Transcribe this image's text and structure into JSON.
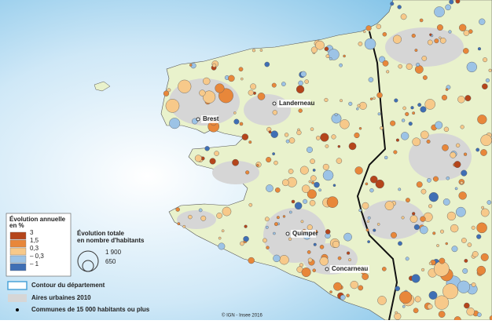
{
  "map": {
    "places": [
      "Brest",
      "Landerneau",
      "Quimper",
      "Concarneau"
    ],
    "credit": "© IGN - Insee 2016"
  },
  "legend": {
    "color_title": [
      "Évolution annuelle",
      "en %"
    ],
    "classes": [
      {
        "label": "3",
        "color": "#b5451b"
      },
      {
        "label": "1,5",
        "color": "#e8873a"
      },
      {
        "label": "0,3",
        "color": "#f7c98a"
      },
      {
        "label": "– 0,3",
        "color": "#9cc3e6"
      },
      {
        "label": "– 1",
        "color": "#3f6fb5"
      }
    ],
    "size_title": [
      "Évolution totale",
      "en nombre d'habitants"
    ],
    "size_labels": [
      "1 900",
      "650"
    ],
    "items": [
      "Contour du département",
      "Aires urbaines 2010",
      "Communes de 15 000 habitants ou plus"
    ]
  }
}
